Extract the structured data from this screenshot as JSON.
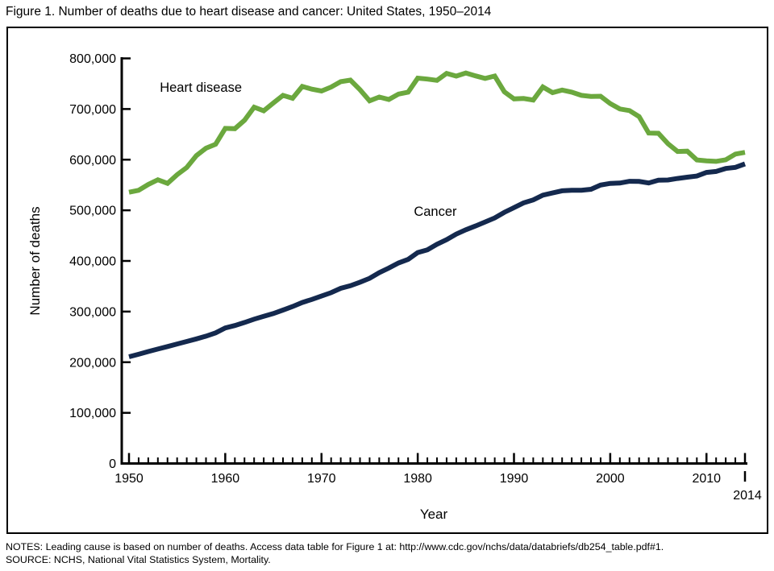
{
  "figure": {
    "title": "Figure 1. Number of deaths due to heart disease and cancer: United States, 1950–2014",
    "notes": "NOTES: Leading cause is based on number of deaths. Access data table for Figure 1 at: http://www.cdc.gov/nchs/data/databriefs/db254_table.pdf#1.",
    "source": "SOURCE: NCHS, National Vital Statistics System, Mortality."
  },
  "chart_data": {
    "type": "line",
    "title": "Figure 1. Number of deaths due to heart disease and cancer: United States, 1950–2014",
    "xlabel": "Year",
    "ylabel": "Number of deaths",
    "xlim": [
      1950,
      2014
    ],
    "ylim": [
      0,
      800000
    ],
    "y_tick_step": 100000,
    "y_tick_labels": [
      "0",
      "100,000",
      "200,000",
      "300,000",
      "400,000",
      "500,000",
      "600,000",
      "700,000",
      "800,000"
    ],
    "x_major_ticks": [
      1950,
      1960,
      1970,
      1980,
      1990,
      2000,
      2010
    ],
    "x_end_tick": 2014,
    "x_end_label": "2014",
    "grid": false,
    "legend": "inline-labels",
    "years": [
      1950,
      1951,
      1952,
      1953,
      1954,
      1955,
      1956,
      1957,
      1958,
      1959,
      1960,
      1961,
      1962,
      1963,
      1964,
      1965,
      1966,
      1967,
      1968,
      1969,
      1970,
      1971,
      1972,
      1973,
      1974,
      1975,
      1976,
      1977,
      1978,
      1979,
      1980,
      1981,
      1982,
      1983,
      1984,
      1985,
      1986,
      1987,
      1988,
      1989,
      1990,
      1991,
      1992,
      1993,
      1994,
      1995,
      1996,
      1997,
      1998,
      1999,
      2000,
      2001,
      2002,
      2003,
      2004,
      2005,
      2006,
      2007,
      2008,
      2009,
      2010,
      2011,
      2012,
      2013,
      2014
    ],
    "series": [
      {
        "name": "Heart disease",
        "color": "#6ba83e",
        "label": {
          "year": 1953.2,
          "value": 734000,
          "anchor": "start"
        },
        "values": [
          535705,
          539419,
          551121,
          560275,
          553237,
          570416,
          584463,
          608055,
          622638,
          630528,
          661712,
          661144,
          677925,
          703677,
          696496,
          712087,
          727002,
          721268,
          744658,
          739265,
          735542,
          743368,
          754009,
          757075,
          738171,
          716215,
          723729,
          718850,
          729510,
          733293,
          761085,
          759054,
          756613,
          770345,
          765056,
          771169,
          765490,
          760353,
          765156,
          733867,
          720058,
          720862,
          717706,
          743460,
          732409,
          737563,
          733361,
          726974,
          724859,
          725192,
          710760,
          700142,
          696947,
          685089,
          652486,
          652091,
          631636,
          616067,
          616828,
          599413,
          597689,
          596577,
          599711,
          611105,
          614348
        ]
      },
      {
        "name": "Cancer",
        "color": "#14294e",
        "label": {
          "year": 1979.6,
          "value": 489000,
          "anchor": "start"
        },
        "values": [
          210733,
          215740,
          221000,
          226000,
          231000,
          236000,
          241000,
          246000,
          251500,
          258000,
          267627,
          272500,
          278500,
          285000,
          290500,
          296072,
          303000,
          310000,
          318000,
          324000,
          330730,
          337398,
          346000,
          351000,
          358000,
          365693,
          377000,
          386000,
          396000,
          403000,
          416509,
          422000,
          433000,
          442000,
          453000,
          461563,
          469000,
          477000,
          485000,
          496000,
          505322,
          514657,
          520578,
          529904,
          534310,
          538455,
          539533,
          539577,
          541532,
          549838,
          553091,
          553768,
          557271,
          556902,
          553888,
          559312,
          559888,
          562875,
          565469,
          567628,
          574743,
          576691,
          582623,
          584881,
          591699
        ]
      }
    ]
  }
}
